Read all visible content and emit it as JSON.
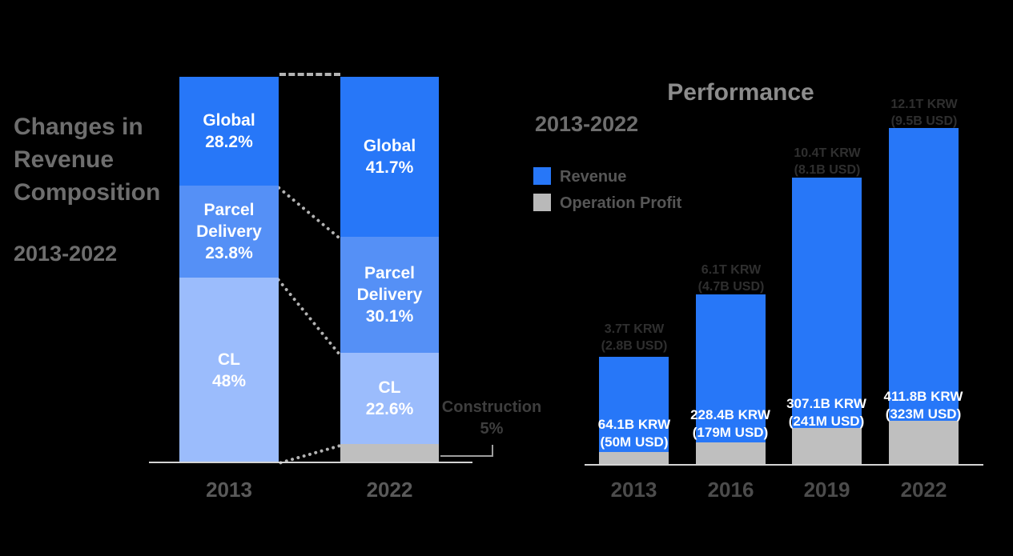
{
  "background": "#000000",
  "colors": {
    "revenue_blue": "#2777f8",
    "parcel_blue": "#5590f6",
    "cl_blue": "#9bbcfc",
    "segment_gray": "#bfbfbf",
    "title_gray": "#6e6e6e",
    "performance_title_gray": "#8c8c8c",
    "label_white": "#ffffff"
  },
  "composition": {
    "title": "Changes in Revenue Composition",
    "period": "2013-2022",
    "x_labels": [
      "2013",
      "2022"
    ],
    "bars": [
      {
        "year": "2013",
        "segments": [
          {
            "name": "Global",
            "value": "28.2%"
          },
          {
            "name": "Parcel Delivery",
            "value": "23.8%"
          },
          {
            "name": "CL",
            "value": "48%"
          }
        ]
      },
      {
        "year": "2022",
        "segments": [
          {
            "name": "Global",
            "value": "41.7%"
          },
          {
            "name": "Parcel Delivery",
            "value": "30.1%"
          },
          {
            "name": "CL",
            "value": "22.6%"
          },
          {
            "name": "Construction",
            "value": "5%"
          }
        ]
      }
    ],
    "callout": {
      "name": "Construction",
      "value": "5%"
    }
  },
  "performance": {
    "title": "Performance",
    "period": "2013-2022",
    "legend": [
      {
        "label": "Revenue",
        "color": "#2777f8"
      },
      {
        "label": "Operation Profit",
        "color": "#bfbfbf"
      }
    ],
    "x_labels": [
      "2013",
      "2016",
      "2019",
      "2022"
    ],
    "bars": [
      {
        "year": "2013",
        "revenue_krw": "3.7T KRW",
        "revenue_usd": "(2.8B USD)",
        "profit_krw": "64.1B KRW",
        "profit_usd": "(50M USD)"
      },
      {
        "year": "2016",
        "revenue_krw": "6.1T KRW",
        "revenue_usd": "(4.7B USD)",
        "profit_krw": "228.4B KRW",
        "profit_usd": "(179M USD)"
      },
      {
        "year": "2019",
        "revenue_krw": "10.4T KRW",
        "revenue_usd": "(8.1B USD)",
        "profit_krw": "307.1B KRW",
        "profit_usd": "(241M USD)"
      },
      {
        "year": "2022",
        "revenue_krw": "12.1T KRW",
        "revenue_usd": "(9.5B USD)",
        "profit_krw": "411.8B KRW",
        "profit_usd": "(323M USD)"
      }
    ]
  },
  "chart_data": [
    {
      "type": "bar",
      "variant": "100%-stacked",
      "title": "Changes in Revenue Composition",
      "period": "2013-2022",
      "categories": [
        "2013",
        "2022"
      ],
      "series": [
        {
          "name": "Global",
          "values": [
            28.2,
            41.7
          ],
          "color": "#2777f8"
        },
        {
          "name": "Parcel Delivery",
          "values": [
            23.8,
            30.1
          ],
          "color": "#5590f6"
        },
        {
          "name": "CL",
          "values": [
            48,
            22.6
          ],
          "color": "#9bbcfc"
        },
        {
          "name": "Construction",
          "values": [
            0,
            5
          ],
          "color": "#bfbfbf"
        }
      ],
      "unit": "%",
      "ylim": [
        0,
        100
      ],
      "grid": false,
      "legend_position": "none",
      "segment_order_top_to_bottom": [
        "Global",
        "Parcel Delivery",
        "CL",
        "Construction"
      ]
    },
    {
      "type": "bar",
      "variant": "stacked-revenue-profit",
      "title": "Performance",
      "period": "2013-2022",
      "categories": [
        "2013",
        "2016",
        "2019",
        "2022"
      ],
      "series": [
        {
          "name": "Revenue",
          "values_trillion_krw": [
            3.7,
            6.1,
            10.4,
            12.1
          ],
          "values_usd_labels": [
            "2.8B USD",
            "4.7B USD",
            "8.1B USD",
            "9.5B USD"
          ],
          "color": "#2777f8"
        },
        {
          "name": "Operation Profit",
          "values_billion_krw": [
            64.1,
            228.4,
            307.1,
            411.8
          ],
          "values_usd_labels": [
            "50M USD",
            "179M USD",
            "241M USD",
            "323M USD"
          ],
          "color": "#bfbfbf"
        }
      ],
      "grid": false,
      "legend_position": "top-left"
    }
  ]
}
